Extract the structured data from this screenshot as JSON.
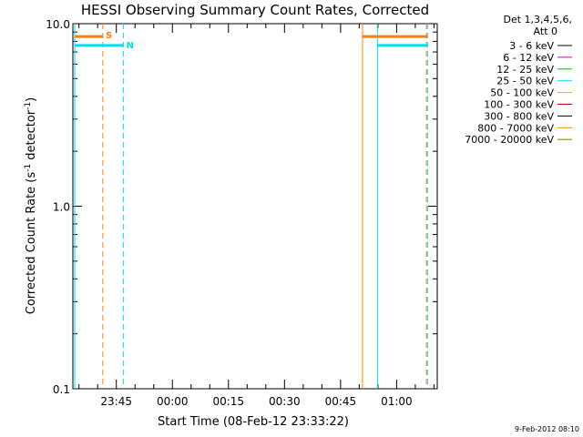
{
  "chart_data": {
    "type": "line",
    "title": "HESSI Observing Summary Count Rates, Corrected",
    "xlabel": "Start Time (08-Feb-12 23:33:22)",
    "ylabel": "Corrected Count Rate (s",
    "ylabel_sup1": "-1",
    "ylabel_mid": " detector",
    "ylabel_sup2": "-1",
    "ylabel_end": ")",
    "yscale": "log",
    "ylim": [
      0.1,
      10.0
    ],
    "xlim_minutes": [
      0,
      97.5
    ],
    "y_ticks": [
      {
        "value": 0.1,
        "label": "0.1"
      },
      {
        "value": 1.0,
        "label": "1.0"
      },
      {
        "value": 10.0,
        "label": "10.0"
      }
    ],
    "x_ticks": [
      {
        "value": 11.63,
        "label": "23:45"
      },
      {
        "value": 26.63,
        "label": "00:00"
      },
      {
        "value": 41.63,
        "label": "00:15"
      },
      {
        "value": 56.63,
        "label": "00:30"
      },
      {
        "value": 71.63,
        "label": "00:45"
      },
      {
        "value": 86.63,
        "label": "01:00"
      }
    ],
    "legend_header": [
      "Det 1,3,4,5,6,",
      "Att 0"
    ],
    "legend": [
      {
        "label": "3 - 6 keV",
        "color": "#000000"
      },
      {
        "label": "6 - 12 keV",
        "color": "#d000d0"
      },
      {
        "label": "12 - 25 keV",
        "color": "#00c000"
      },
      {
        "label": "25 - 50 keV",
        "color": "#00e0f0"
      },
      {
        "label": "50 - 100 keV",
        "color": "#e8c000"
      },
      {
        "label": "100 - 300 keV",
        "color": "#e00000"
      },
      {
        "label": "300 - 800 keV",
        "color": "#000000"
      },
      {
        "label": "800 - 7000 keV",
        "color": "#ff8000"
      },
      {
        "label": "7000 - 20000 keV",
        "color": "#808000"
      }
    ],
    "bars": [
      {
        "name": "saa-bar-1",
        "color": "#ff8000",
        "x0": 0.5,
        "x1": 8.0,
        "y": 8.5
      },
      {
        "name": "saa-bar-2",
        "color": "#ff8000",
        "x0": 77.5,
        "x1": 94.9,
        "y": 8.5
      },
      {
        "name": "night-bar-1",
        "color": "#00e0f0",
        "x0": 0.5,
        "x1": 13.5,
        "y": 7.6
      },
      {
        "name": "night-bar-2",
        "color": "#00e0f0",
        "x0": 81.5,
        "x1": 94.9,
        "y": 7.6
      }
    ],
    "vlines": [
      {
        "name": "saa-start-line",
        "color": "#ff8000",
        "x": 8.0,
        "dashed": true
      },
      {
        "name": "night-end-line",
        "color": "#00e0f0",
        "x": 13.5,
        "dashed": true
      },
      {
        "name": "night-start-line-1",
        "color": "#00e0f0",
        "x": 0.5,
        "dashed": false
      },
      {
        "name": "saa-line-2",
        "color": "#ff8000",
        "x": 77.5,
        "dashed": false
      },
      {
        "name": "night-start-line-2",
        "color": "#00e0f0",
        "x": 81.5,
        "dashed": false
      },
      {
        "name": "end-line-cyan",
        "color": "#00e0f0",
        "x": 94.9,
        "dashed": true
      },
      {
        "name": "end-line-orange",
        "color": "#ff8000",
        "x": 94.6,
        "dashed": true
      }
    ],
    "markers": [
      {
        "name": "saa-marker",
        "text": "S",
        "color": "#ff8000",
        "x": 8.8,
        "y": 8.7
      },
      {
        "name": "night-marker",
        "text": "N",
        "color": "#00e0f0",
        "x": 14.3,
        "y": 7.7
      }
    ]
  },
  "footer": {
    "timestamp": "9-Feb-2012 08:10"
  }
}
